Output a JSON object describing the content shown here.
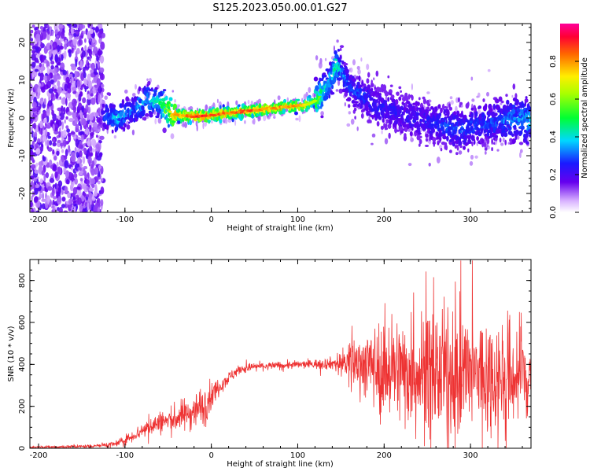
{
  "figure_title": "S125.2023.050.00.01.G27",
  "chart_data": [
    {
      "type": "heatmap",
      "xlabel": "Height of straight line (km)",
      "ylabel": "Frequency (Hz)",
      "xlim": [
        -210,
        370
      ],
      "ylim": [
        -25,
        25
      ],
      "x_ticks": [
        -200,
        -100,
        0,
        100,
        200,
        300
      ],
      "y_ticks": [
        -20,
        -10,
        0,
        10,
        20
      ],
      "colorbar": {
        "label": "Normalized spectral amplitude",
        "range": [
          0,
          1
        ],
        "ticks": [
          0.0,
          0.2,
          0.4,
          0.6,
          0.8
        ]
      },
      "ridge_trace": {
        "x": [
          -125,
          -110,
          -90,
          -75,
          -60,
          -45,
          -30,
          -10,
          10,
          30,
          50,
          70,
          90,
          110,
          125,
          135,
          145,
          150,
          160,
          175,
          190,
          210,
          230,
          250,
          270,
          290,
          310,
          330,
          350,
          370
        ],
        "frequency": [
          1,
          0,
          2,
          5,
          4,
          1,
          0.5,
          0.5,
          1,
          1.5,
          2,
          2.5,
          3,
          3.5,
          5,
          9,
          14,
          13,
          8,
          6,
          3,
          2,
          0,
          -1,
          -2,
          -3,
          -2,
          -1,
          0,
          -1
        ],
        "peak_amplitude": [
          0.3,
          0.4,
          0.35,
          0.4,
          0.45,
          0.75,
          0.85,
          0.9,
          0.85,
          0.85,
          0.85,
          0.8,
          0.8,
          0.75,
          0.55,
          0.4,
          0.5,
          0.35,
          0.3,
          0.3,
          0.25,
          0.25,
          0.25,
          0.25,
          0.3,
          0.3,
          0.3,
          0.3,
          0.35,
          0.4
        ]
      }
    },
    {
      "type": "line",
      "xlabel": "Height of straight line (km)",
      "ylabel": "SNR (10 * v/v)",
      "xlim": [
        -210,
        370
      ],
      "ylim": [
        0,
        900
      ],
      "x_ticks": [
        -200,
        -100,
        0,
        100,
        200,
        300
      ],
      "y_ticks": [
        0,
        200,
        400,
        600,
        800
      ],
      "series": [
        {
          "color": "#ee3333",
          "envelope": {
            "x": [
              -210,
              -150,
              -110,
              -90,
              -70,
              -50,
              -30,
              -10,
              10,
              30,
              50,
              80,
              110,
              140,
              160,
              180,
              200,
              220,
              250,
              280,
              310,
              340,
              370
            ],
            "center": [
              5,
              8,
              20,
              60,
              110,
              130,
              160,
              200,
              300,
              370,
              390,
              395,
              400,
              405,
              410,
              400,
              380,
              370,
              360,
              350,
              350,
              340,
              350
            ],
            "spread": [
              5,
              8,
              15,
              30,
              50,
              60,
              80,
              100,
              40,
              25,
              20,
              20,
              20,
              30,
              100,
              170,
              230,
              270,
              300,
              310,
              300,
              290,
              260
            ]
          }
        }
      ]
    }
  ]
}
